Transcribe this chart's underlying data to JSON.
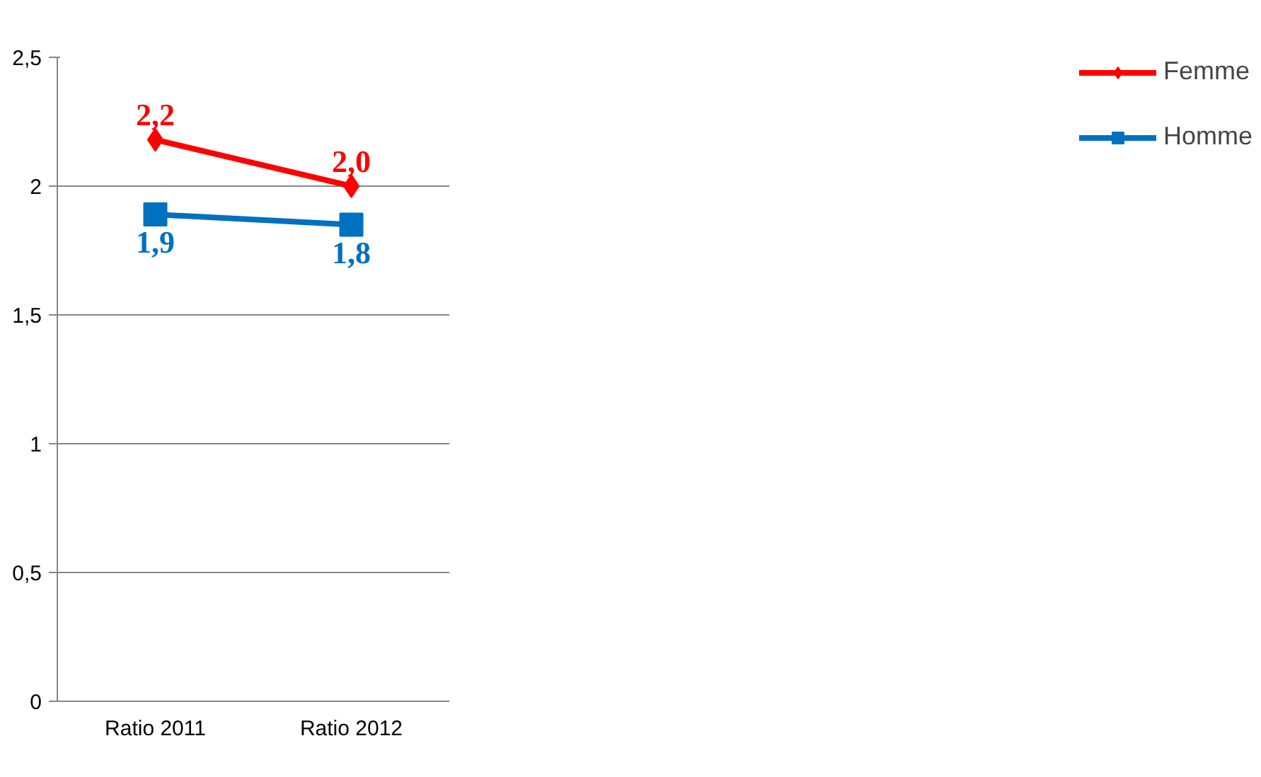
{
  "chart_data": {
    "type": "line",
    "categories": [
      "Ratio 2011",
      "Ratio 2012"
    ],
    "series": [
      {
        "name": "Femme",
        "color": "#ff0000",
        "values": [
          2.18,
          2.0
        ],
        "marker": "diamond",
        "value_labels": [
          "2,2",
          "2,0"
        ]
      },
      {
        "name": "Homme",
        "color": "#0070c0",
        "values": [
          1.89,
          1.85
        ],
        "marker": "square",
        "value_labels": [
          "1,9",
          "1,8"
        ]
      }
    ],
    "ylim": [
      0,
      2.5
    ],
    "yticks": [
      0,
      {
        "value": 0.5,
        "label": "0,5"
      },
      1,
      {
        "value": 1.5,
        "label": "1,5"
      },
      2,
      {
        "value": 2.5,
        "label": "2,5"
      }
    ],
    "grid": "y",
    "legend": "right",
    "line_style": "solid"
  }
}
